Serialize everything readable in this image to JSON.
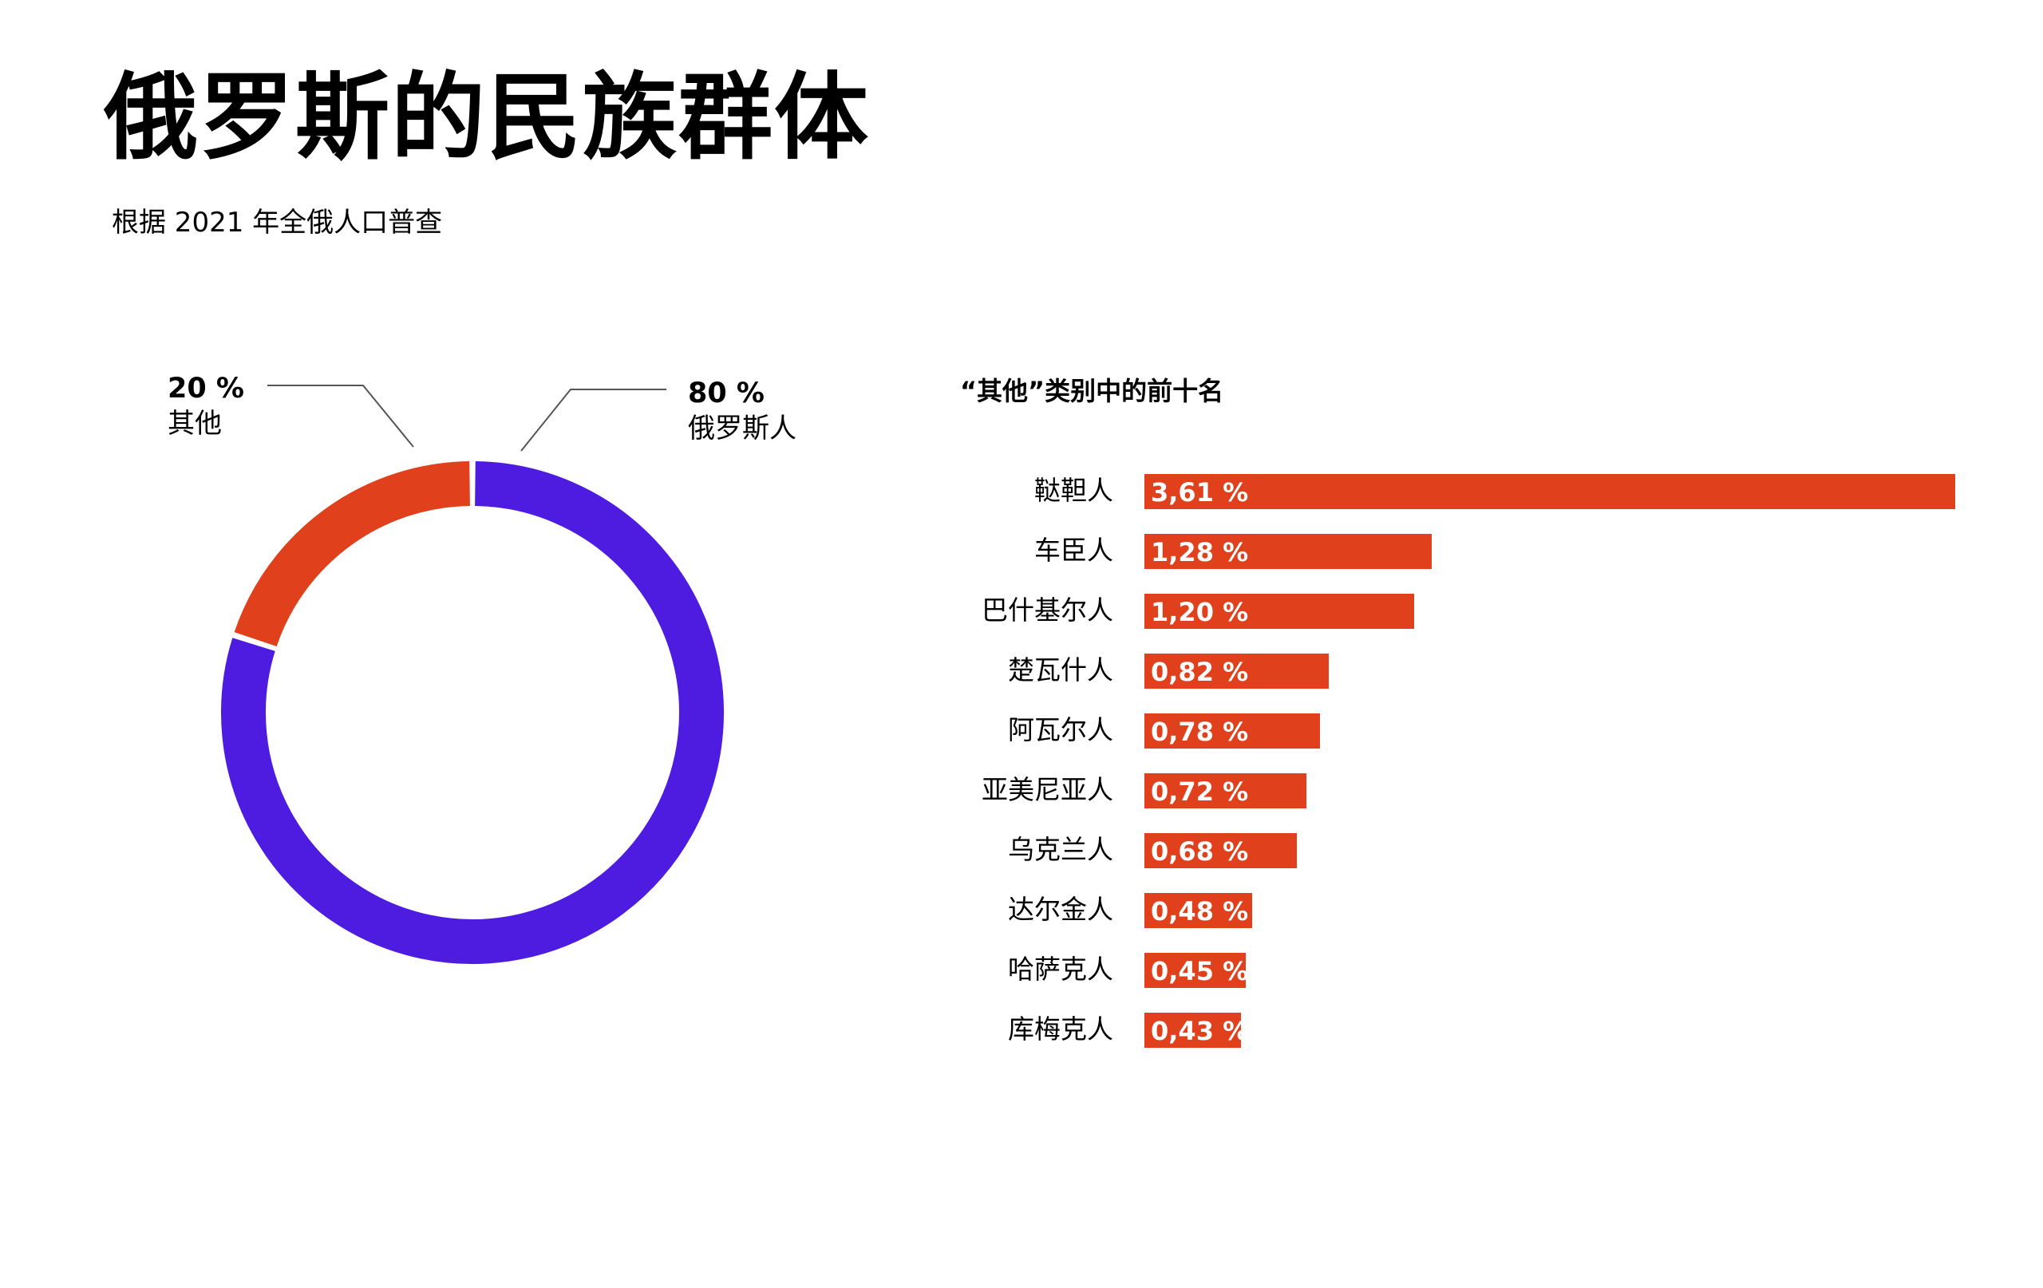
{
  "title": "俄罗斯的民族群体",
  "subtitle": "根据 2021 年全俄人口普查",
  "colors": {
    "russian": "#4e1ce0",
    "other": "#e0401c"
  },
  "chart_data": [
    {
      "type": "pie",
      "style": "donut",
      "categories": [
        "俄罗斯人",
        "其他"
      ],
      "values": [
        80,
        20
      ],
      "value_labels": [
        "80 %",
        "20 %"
      ]
    },
    {
      "type": "bar",
      "orientation": "horizontal",
      "title": "“其他”类别中的前十名",
      "categories": [
        "鞑靼人",
        "车臣人",
        "巴什基尔人",
        "楚瓦什人",
        "阿瓦尔人",
        "亚美尼亚人",
        "乌克兰人",
        "达尔金人",
        "哈萨克人",
        "库梅克人"
      ],
      "values": [
        3.61,
        1.28,
        1.2,
        0.82,
        0.78,
        0.72,
        0.68,
        0.48,
        0.45,
        0.43
      ],
      "value_labels": [
        "3,61 %",
        "1,28 %",
        "1,20 %",
        "0,82 %",
        "0,78 %",
        "0,72 %",
        "0,68 %",
        "0,48 %",
        "0,45 %",
        "0,43 %"
      ]
    }
  ]
}
